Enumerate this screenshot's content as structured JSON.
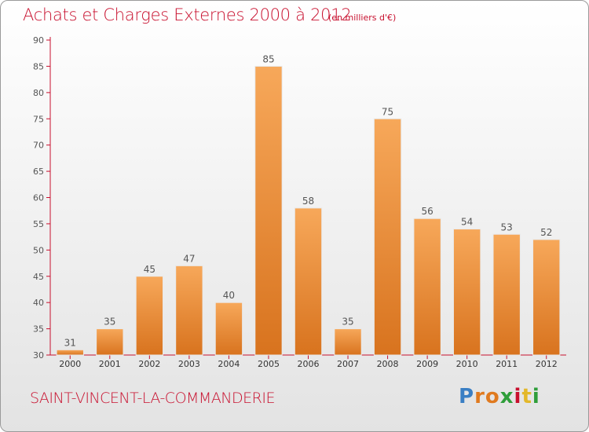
{
  "header": {
    "title": "Achats et Charges Externes 2000 à 2012",
    "unit_note": "(en milliers d'€)"
  },
  "footer": {
    "commune": "SAINT-VINCENT-LA-COMMANDERIE",
    "logo_letters": [
      "P",
      "r",
      "o",
      "x",
      "i",
      "t",
      "i"
    ],
    "logo_colors": [
      "#3a7fc4",
      "#e07a1f",
      "#e07a1f",
      "#2f9e3a",
      "#c8102e",
      "#e3b82a",
      "#2f9e3a"
    ]
  },
  "chart_data": {
    "type": "bar",
    "title": "Achats et Charges Externes 2000 à 2012",
    "subtitle": "(en milliers d'€)",
    "xlabel": "",
    "ylabel": "",
    "categories": [
      "2000",
      "2001",
      "2002",
      "2003",
      "2004",
      "2005",
      "2006",
      "2007",
      "2008",
      "2009",
      "2010",
      "2011",
      "2012"
    ],
    "values": [
      31,
      35,
      45,
      47,
      40,
      85,
      58,
      35,
      75,
      56,
      54,
      53,
      52
    ],
    "ylim": [
      30,
      90
    ],
    "yticks": [
      30,
      35,
      40,
      45,
      50,
      55,
      60,
      65,
      70,
      75,
      80,
      85,
      90
    ],
    "grid": false,
    "bar_color_light": "#f7a85a",
    "bar_color_dark": "#d8731e",
    "axis_color": "#c8102e",
    "label_color": "#555555"
  }
}
